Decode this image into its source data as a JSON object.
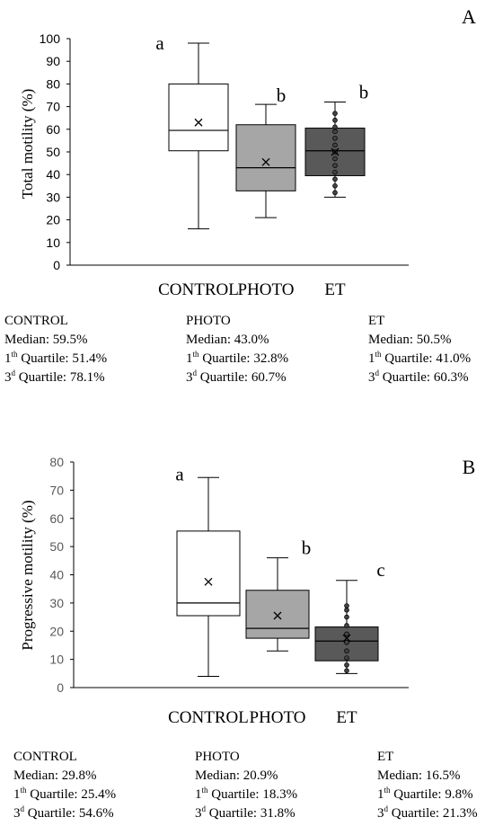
{
  "chart_data": [
    {
      "type": "box",
      "panel_label": "A",
      "ylabel": "Total motility (%)",
      "ylim": [
        0,
        100
      ],
      "yticks": [
        0,
        10,
        20,
        30,
        40,
        50,
        60,
        70,
        80,
        90,
        100
      ],
      "grid": false,
      "categories": [
        "CONTROL",
        "PHOTO",
        "ET"
      ],
      "boxes": [
        {
          "name": "CONTROL",
          "fill": "#ffffff",
          "min": 16,
          "q1": 50.5,
          "median": 59.5,
          "q3": 80,
          "max": 98,
          "mean": 63,
          "points": [],
          "letter": "a",
          "stats": {
            "header": "CONTROL",
            "median": "Median: 59.5%",
            "q1_sup": "th",
            "q1_text": " Quartile: 51.4%",
            "q3_sup": "d",
            "q3_text": " Quartile: 78.1%"
          }
        },
        {
          "name": "PHOTO",
          "fill": "#a6a6a6",
          "min": 21,
          "q1": 32.8,
          "median": 43,
          "q3": 62,
          "max": 71,
          "mean": 45.5,
          "points": [],
          "letter": "b",
          "stats": {
            "header": "PHOTO",
            "median": "Median: 43.0%",
            "q1_sup": "th",
            "q1_text": " Quartile: 32.8%",
            "q3_sup": "d",
            "q3_text": " Quartile: 60.7%"
          }
        },
        {
          "name": "ET",
          "fill": "#595959",
          "min": 30,
          "q1": 39.5,
          "median": 50.5,
          "q3": 60.5,
          "max": 72,
          "mean": 50,
          "points": [
            32,
            35,
            38,
            41,
            44,
            47,
            50,
            53,
            56,
            59,
            61,
            64,
            67
          ],
          "letter": "b",
          "stats": {
            "header": "ET",
            "median": "Median: 50.5%",
            "q1_sup": "th",
            "q1_text": " Quartile: 41.0%",
            "q3_sup": "d",
            "q3_text": " Quartile: 60.3%"
          }
        }
      ]
    },
    {
      "type": "box",
      "panel_label": "B",
      "ylabel": "Progressive motility (%)",
      "ylim": [
        0,
        80
      ],
      "yticks": [
        0,
        10,
        20,
        30,
        40,
        50,
        60,
        70,
        80
      ],
      "grid": false,
      "categories": [
        "CONTROL",
        "PHOTO",
        "ET"
      ],
      "boxes": [
        {
          "name": "CONTROL",
          "fill": "#ffffff",
          "min": 4,
          "q1": 25.5,
          "median": 30,
          "q3": 55.5,
          "max": 74.5,
          "mean": 37.5,
          "points": [],
          "letter": "a",
          "stats": {
            "header": "CONTROL",
            "median": "Median: 29.8%",
            "q1_sup": "th",
            "q1_text": " Quartile: 25.4%",
            "q3_sup": "d",
            "q3_text": " Quartile: 54.6%"
          }
        },
        {
          "name": "PHOTO",
          "fill": "#a6a6a6",
          "min": 13,
          "q1": 17.5,
          "median": 21,
          "q3": 34.5,
          "max": 46,
          "mean": 25.5,
          "points": [],
          "letter": "b",
          "stats": {
            "header": "PHOTO",
            "median": "Median: 20.9%",
            "q1_sup": "th",
            "q1_text": " Quartile: 18.3%",
            "q3_sup": "d",
            "q3_text": " Quartile: 31.8%"
          }
        },
        {
          "name": "ET",
          "fill": "#595959",
          "min": 5,
          "q1": 9.5,
          "median": 16.5,
          "q3": 21.5,
          "max": 38,
          "mean": 17.5,
          "points": [
            6,
            8,
            10.5,
            13,
            16,
            19,
            22,
            25,
            27.5,
            29
          ],
          "letter": "c",
          "stats": {
            "header": "ET",
            "median": "Median: 16.5%",
            "q1_sup": "th",
            "q1_text": " Quartile: 9.8%",
            "q3_sup": "d",
            "q3_text": " Quartile: 21.3%"
          }
        }
      ]
    }
  ]
}
